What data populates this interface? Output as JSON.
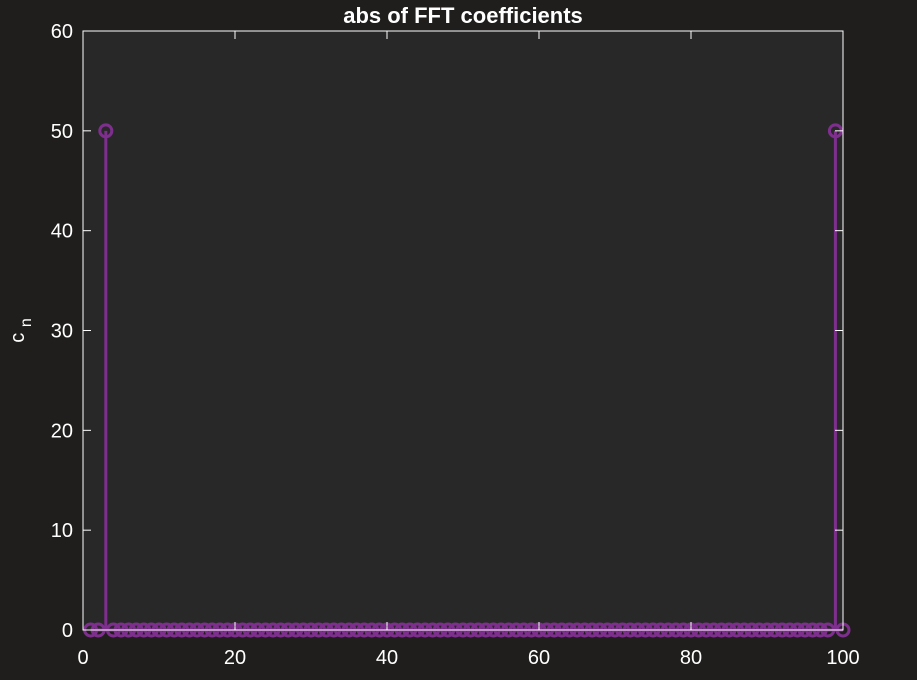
{
  "chart_data": {
    "type": "stem",
    "title": "abs of FFT coefficients",
    "ylabel_main": "c",
    "ylabel_sub": "n",
    "xlabel": "",
    "xlim": [
      0,
      100
    ],
    "ylim": [
      0,
      60
    ],
    "xticks": [
      0,
      20,
      40,
      60,
      80,
      100
    ],
    "yticks": [
      0,
      10,
      20,
      30,
      40,
      50,
      60
    ],
    "grid": false,
    "marker": "circle",
    "x_start": 1,
    "values": [
      0,
      0,
      50,
      0,
      0,
      0,
      0,
      0,
      0,
      0,
      0,
      0,
      0,
      0,
      0,
      0,
      0,
      0,
      0,
      0,
      0,
      0,
      0,
      0,
      0,
      0,
      0,
      0,
      0,
      0,
      0,
      0,
      0,
      0,
      0,
      0,
      0,
      0,
      0,
      0,
      0,
      0,
      0,
      0,
      0,
      0,
      0,
      0,
      0,
      0,
      0,
      0,
      0,
      0,
      0,
      0,
      0,
      0,
      0,
      0,
      0,
      0,
      0,
      0,
      0,
      0,
      0,
      0,
      0,
      0,
      0,
      0,
      0,
      0,
      0,
      0,
      0,
      0,
      0,
      0,
      0,
      0,
      0,
      0,
      0,
      0,
      0,
      0,
      0,
      0,
      0,
      0,
      0,
      0,
      0,
      0,
      0,
      0,
      50,
      0
    ]
  },
  "colors": {
    "figure_bg": "#1f1e1c",
    "axes_bg": "#282828",
    "axes_line": "#ffffff",
    "text": "#ffffff",
    "series": "#7e2f8e"
  }
}
